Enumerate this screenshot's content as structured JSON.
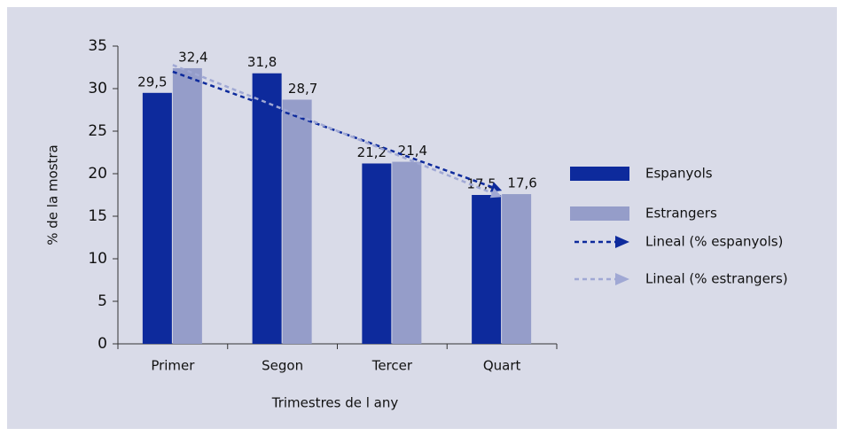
{
  "chart_data": {
    "type": "bar",
    "x_label": "Trimestres de l any",
    "y_label": "% de la mostra",
    "categories": [
      "Primer",
      "Segon",
      "Tercer",
      "Quart"
    ],
    "series": [
      {
        "name": "Espanyols",
        "color": "#0d2a9c",
        "values": [
          29.5,
          31.8,
          21.2,
          17.5
        ],
        "value_labels": [
          "29,5",
          "31,8",
          "21,2",
          "17,5"
        ],
        "trendline": {
          "name": "Lineal (% espanyols)",
          "color": "#0d2a9c"
        }
      },
      {
        "name": "Estrangers",
        "color": "#959dc9",
        "values": [
          32.4,
          28.7,
          21.4,
          17.6
        ],
        "value_labels": [
          "32,4",
          "28,7",
          "21,4",
          "17,6"
        ],
        "trendline": {
          "name": "Lineal (% estrangers)",
          "color": "#a0a8d4"
        }
      }
    ],
    "ylim": [
      0,
      35
    ],
    "yticks": [
      0,
      5,
      10,
      15,
      20,
      25,
      30,
      35
    ],
    "grid": false,
    "legend": "right"
  }
}
